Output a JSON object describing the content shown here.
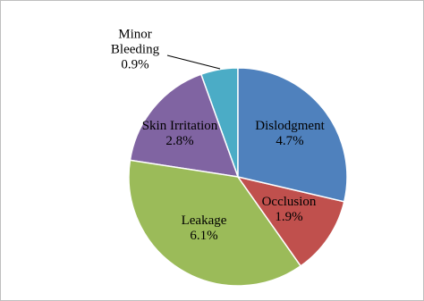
{
  "chart_data": {
    "type": "pie",
    "categories": [
      "Dislodgment",
      "Occlusion",
      "Leakage",
      "Skin Irritation",
      "Minor Bleeding"
    ],
    "values": [
      4.7,
      1.9,
      6.1,
      2.8,
      0.9
    ],
    "value_labels": [
      "4.7%",
      "1.9%",
      "6.1%",
      "2.8%",
      "0.9%"
    ],
    "colors": [
      "#4f81bd",
      "#c0504d",
      "#9bbb59",
      "#8064a2",
      "#4bacc6"
    ]
  }
}
